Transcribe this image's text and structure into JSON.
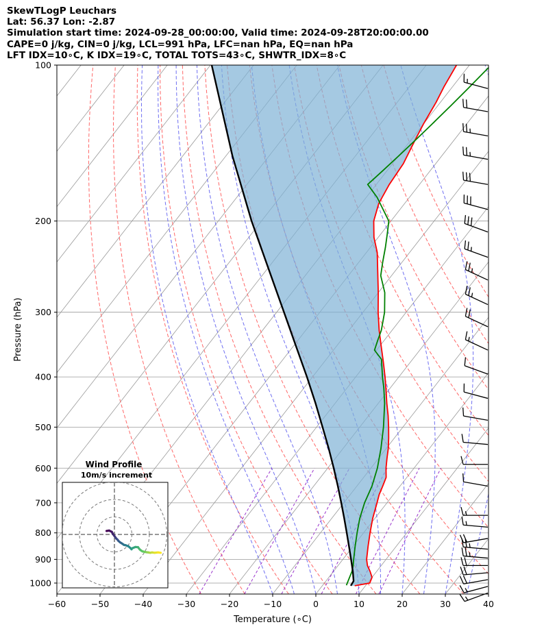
{
  "header": {
    "line1": "SkewTLogP Leuchars",
    "line2": "Lat: 56.37   Lon: -2.87",
    "line3": "Simulation start time: 2024-09-28_00:00:00, Valid time: 2024-09-28T20:00:00.00",
    "line4": "CAPE=0 j/kg, CIN=0 j/kg, LCL=991 hPa, LFC=nan hPa, EQ=nan hPa",
    "line5": "LFT IDX=10∘C, K IDX=19∘C, TOTAL TOTS=43∘C, SHWTR_IDX=8∘C"
  },
  "chart_data": [
    {
      "type": "line",
      "chart": "skew-t log-p",
      "xlabel": "Temperature (∘C)",
      "ylabel": "Pressure (hPa)",
      "xlim": [
        -60,
        40
      ],
      "ylim": [
        1050,
        100
      ],
      "y_scale": "log",
      "x_ticks": [
        -60,
        -50,
        -40,
        -30,
        -20,
        -10,
        0,
        10,
        20,
        30,
        40
      ],
      "y_ticks": [
        1000,
        900,
        800,
        700,
        600,
        500,
        400,
        300,
        200,
        100
      ],
      "grid": true,
      "colors": {
        "temperature": "#ff0000",
        "dewpoint": "#008000",
        "parcel": "#000000",
        "shade": "#7fb2d5",
        "dry_adiabats": "#ff6666",
        "moist_adiabats": "#5555ee",
        "mixing_ratio": "#9933cc",
        "isotherms": "#999999"
      },
      "series": [
        {
          "role": "temperature",
          "points": [
            [
              1012,
              7.5
            ],
            [
              1000,
              10.5
            ],
            [
              975,
              10
            ],
            [
              950,
              8.5
            ],
            [
              925,
              6.8
            ],
            [
              900,
              5.5
            ],
            [
              850,
              3.5
            ],
            [
              800,
              1.5
            ],
            [
              750,
              -0.5
            ],
            [
              700,
              -2.3
            ],
            [
              675,
              -3.3
            ],
            [
              650,
              -4
            ],
            [
              625,
              -4.8
            ],
            [
              600,
              -6.5
            ],
            [
              575,
              -8
            ],
            [
              550,
              -9.5
            ],
            [
              525,
              -11.3
            ],
            [
              500,
              -13.3
            ],
            [
              475,
              -15.5
            ],
            [
              450,
              -18
            ],
            [
              425,
              -20.5
            ],
            [
              400,
              -23.2
            ],
            [
              375,
              -26.2
            ],
            [
              350,
              -29.5
            ],
            [
              325,
              -33
            ],
            [
              300,
              -36.5
            ],
            [
              275,
              -40
            ],
            [
              250,
              -44
            ],
            [
              230,
              -47.5
            ],
            [
              215,
              -51
            ],
            [
              200,
              -54
            ],
            [
              185,
              -56
            ],
            [
              170,
              -57
            ],
            [
              155,
              -57.5
            ],
            [
              140,
              -59
            ],
            [
              130,
              -60
            ],
            [
              118,
              -61
            ],
            [
              110,
              -62
            ],
            [
              100,
              -63
            ]
          ]
        },
        {
          "role": "dewpoint",
          "points": [
            [
              1010,
              5.5
            ],
            [
              975,
              4.8
            ],
            [
              950,
              4.3
            ],
            [
              925,
              3.5
            ],
            [
              900,
              2.5
            ],
            [
              850,
              0.5
            ],
            [
              800,
              -1.5
            ],
            [
              750,
              -3.5
            ],
            [
              700,
              -5.2
            ],
            [
              650,
              -6.5
            ],
            [
              600,
              -8.5
            ],
            [
              550,
              -11.2
            ],
            [
              500,
              -14.5
            ],
            [
              450,
              -18.5
            ],
            [
              420,
              -21.5
            ],
            [
              400,
              -23.8
            ],
            [
              370,
              -27.2
            ],
            [
              355,
              -30.5
            ],
            [
              340,
              -31.5
            ],
            [
              325,
              -32.5
            ],
            [
              300,
              -35
            ],
            [
              275,
              -38.5
            ],
            [
              255,
              -42.5
            ],
            [
              240,
              -44.5
            ],
            [
              225,
              -46.5
            ],
            [
              212,
              -48.5
            ],
            [
              200,
              -50.5
            ],
            [
              180,
              -57.5
            ],
            [
              170,
              -62
            ],
            [
              160,
              -61
            ],
            [
              150,
              -60
            ],
            [
              140,
              -59
            ],
            [
              130,
              -58
            ],
            [
              120,
              -57
            ],
            [
              110,
              -56
            ],
            [
              100,
              -55
            ]
          ]
        },
        {
          "role": "parcel",
          "points": [
            [
              1012,
              6.6
            ],
            [
              991,
              6.4
            ],
            [
              950,
              4.5
            ],
            [
              900,
              1.9
            ],
            [
              850,
              -0.9
            ],
            [
              800,
              -3.9
            ],
            [
              750,
              -7.1
            ],
            [
              700,
              -10.6
            ],
            [
              650,
              -14.4
            ],
            [
              600,
              -18.6
            ],
            [
              550,
              -23.3
            ],
            [
              500,
              -28.6
            ],
            [
              450,
              -34.5
            ],
            [
              400,
              -41.3
            ],
            [
              350,
              -49.2
            ],
            [
              300,
              -58.3
            ],
            [
              250,
              -69.1
            ],
            [
              200,
              -82.3
            ],
            [
              150,
              -98.4
            ],
            [
              100,
              -119.7
            ]
          ]
        }
      ],
      "wind_barbs": [
        {
          "p": 1045,
          "speed_kt": 15,
          "dir": 250
        },
        {
          "p": 1015,
          "speed_kt": 15,
          "dir": 255
        },
        {
          "p": 985,
          "speed_kt": 20,
          "dir": 260
        },
        {
          "p": 955,
          "speed_kt": 20,
          "dir": 265
        },
        {
          "p": 925,
          "speed_kt": 20,
          "dir": 270
        },
        {
          "p": 895,
          "speed_kt": 25,
          "dir": 275
        },
        {
          "p": 860,
          "speed_kt": 25,
          "dir": 275
        },
        {
          "p": 820,
          "speed_kt": 20,
          "dir": 260
        },
        {
          "p": 780,
          "speed_kt": 15,
          "dir": 275
        },
        {
          "p": 740,
          "speed_kt": 15,
          "dir": 270
        },
        {
          "p": 650,
          "speed_kt": 10,
          "dir": 280
        },
        {
          "p": 590,
          "speed_kt": 10,
          "dir": 270
        },
        {
          "p": 540,
          "speed_kt": 10,
          "dir": 275
        },
        {
          "p": 485,
          "speed_kt": 10,
          "dir": 280
        },
        {
          "p": 440,
          "speed_kt": 10,
          "dir": 285
        },
        {
          "p": 395,
          "speed_kt": 10,
          "dir": 290
        },
        {
          "p": 355,
          "speed_kt": 15,
          "dir": 295
        },
        {
          "p": 320,
          "speed_kt": 20,
          "dir": 295
        },
        {
          "p": 290,
          "speed_kt": 25,
          "dir": 295
        },
        {
          "p": 260,
          "speed_kt": 25,
          "dir": 295
        },
        {
          "p": 235,
          "speed_kt": 25,
          "dir": 290
        },
        {
          "p": 210,
          "speed_kt": 30,
          "dir": 290
        },
        {
          "p": 190,
          "speed_kt": 30,
          "dir": 285
        },
        {
          "p": 170,
          "speed_kt": 30,
          "dir": 280
        },
        {
          "p": 152,
          "speed_kt": 25,
          "dir": 280
        },
        {
          "p": 137,
          "speed_kt": 25,
          "dir": 280
        },
        {
          "p": 123,
          "speed_kt": 20,
          "dir": 280
        },
        {
          "p": 111,
          "speed_kt": 15,
          "dir": 285
        }
      ]
    },
    {
      "type": "line",
      "chart": "hodograph",
      "title": "Wind Profile",
      "subtitle": "10m/s increment",
      "ring_step": 10,
      "rings": 3,
      "path_uv": [
        [
          -4.5,
          2
        ],
        [
          -3,
          2.2
        ],
        [
          -1.5,
          1.5
        ],
        [
          -1,
          0.5
        ],
        [
          -0.2,
          -0.6
        ],
        [
          0.5,
          -1.6
        ],
        [
          1,
          -2.3
        ],
        [
          1.8,
          -3
        ],
        [
          2.3,
          -3.7
        ],
        [
          3.2,
          -4.5
        ],
        [
          4.5,
          -5.3
        ],
        [
          5.5,
          -6
        ],
        [
          6.5,
          -6.2
        ],
        [
          8,
          -6.8
        ],
        [
          9.5,
          -8.1
        ],
        [
          9.8,
          -8.5
        ],
        [
          10,
          -8
        ],
        [
          12,
          -7.2
        ],
        [
          13.5,
          -7.3
        ],
        [
          14.5,
          -8.6
        ],
        [
          15,
          -9
        ],
        [
          16,
          -9.7
        ],
        [
          17.5,
          -10
        ],
        [
          18.5,
          -10.2
        ],
        [
          19.5,
          -10.3
        ],
        [
          20.5,
          -10.5
        ],
        [
          21.5,
          -10.3
        ],
        [
          23,
          -10.5
        ],
        [
          25,
          -10.3
        ],
        [
          26.5,
          -10.5
        ]
      ]
    }
  ]
}
